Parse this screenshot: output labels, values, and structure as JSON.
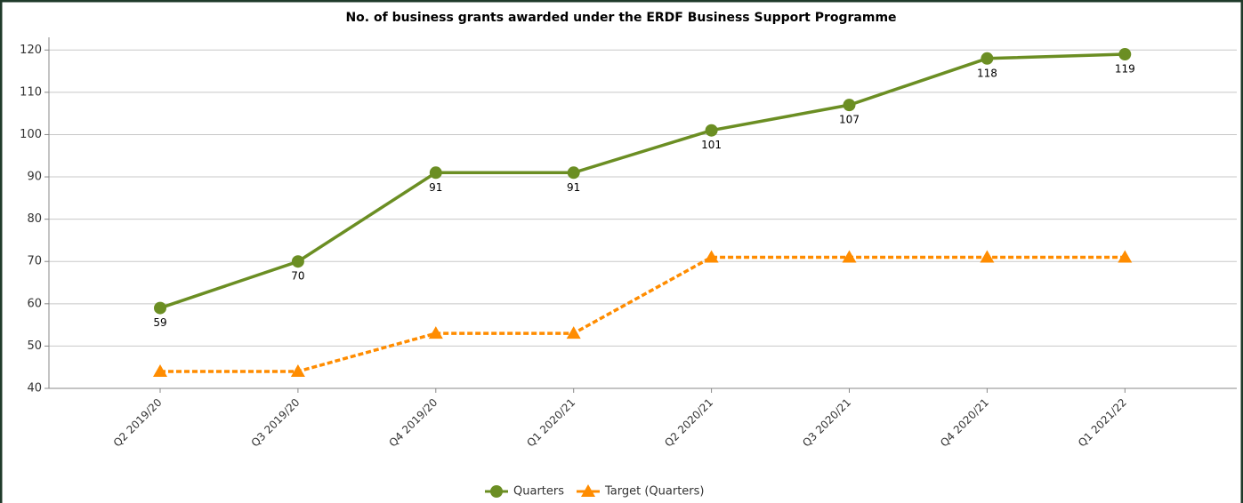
{
  "chart_data": {
    "type": "line",
    "title": "No. of business grants awarded under the ERDF Business Support Programme",
    "categories": [
      "Q2 2019/20",
      "Q3 2019/20",
      "Q4 2019/20",
      "Q1 2020/21",
      "Q2 2020/21",
      "Q3 2020/21",
      "Q4 2020/21",
      "Q1 2021/22"
    ],
    "series": [
      {
        "name": "Quarters",
        "color": "#6b8e23",
        "marker": "circle",
        "dashed": false,
        "values": [
          59,
          70,
          91,
          91,
          101,
          107,
          118,
          119
        ]
      },
      {
        "name": "Target (Quarters)",
        "color": "#ff8c00",
        "marker": "triangle",
        "dashed": true,
        "values": [
          44,
          44,
          53,
          53,
          71,
          71,
          71,
          71
        ]
      }
    ],
    "ylim": [
      40,
      123
    ],
    "yticks": [
      40,
      50,
      60,
      70,
      80,
      90,
      100,
      110,
      120
    ],
    "grid": true,
    "legend": "bottom"
  }
}
